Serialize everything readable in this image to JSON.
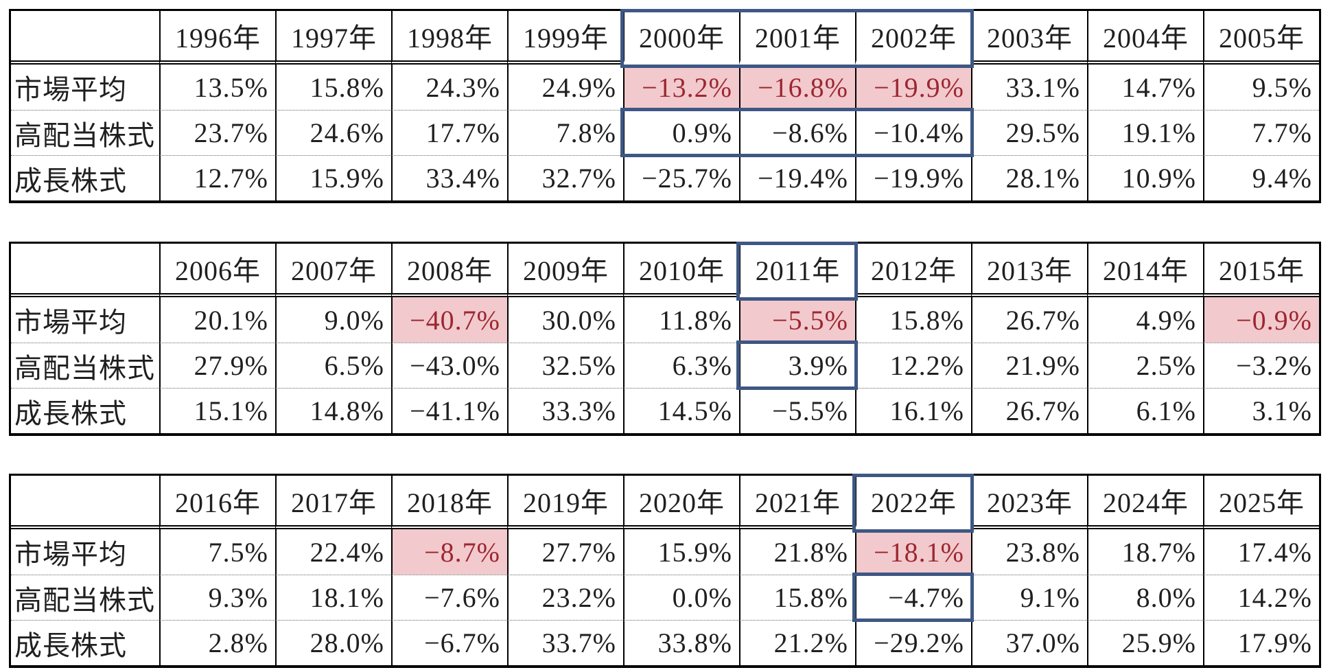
{
  "colors": {
    "pink_fill": "#f2c9cd",
    "red_text": "#9c2731",
    "blue_box_border": "#3e5784",
    "grid_line": "#000000",
    "text": "#1f1f1f"
  },
  "row_labels": [
    "市場平均",
    "高配当株式",
    "成長株式"
  ],
  "tables": [
    {
      "name": "returns-1996-2005",
      "headers": [
        "1996年",
        "1997年",
        "1998年",
        "1999年",
        "2000年",
        "2001年",
        "2002年",
        "2003年",
        "2004年",
        "2005年"
      ],
      "rows": [
        {
          "label": "市場平均",
          "display": [
            "13.5%",
            "15.8%",
            "24.3%",
            "24.9%",
            "−13.2%",
            "−16.8%",
            "−19.9%",
            "33.1%",
            "14.7%",
            "9.5%"
          ]
        },
        {
          "label": "高配当株式",
          "display": [
            "23.7%",
            "24.6%",
            "17.7%",
            "7.8%",
            "0.9%",
            "−8.6%",
            "−10.4%",
            "29.5%",
            "19.1%",
            "7.7%"
          ]
        },
        {
          "label": "成長株式",
          "display": [
            "12.7%",
            "15.9%",
            "33.4%",
            "32.7%",
            "−25.7%",
            "−19.4%",
            "−19.9%",
            "28.1%",
            "10.9%",
            "9.4%"
          ]
        }
      ],
      "highlights": {
        "pink_cells": {
          "row": 0,
          "cols": [
            4,
            5,
            6
          ]
        },
        "blue_box_cols": {
          "start": 4,
          "end": 6
        }
      }
    },
    {
      "name": "returns-2006-2015",
      "headers": [
        "2006年",
        "2007年",
        "2008年",
        "2009年",
        "2010年",
        "2011年",
        "2012年",
        "2013年",
        "2014年",
        "2015年"
      ],
      "rows": [
        {
          "label": "市場平均",
          "display": [
            "20.1%",
            "9.0%",
            "−40.7%",
            "30.0%",
            "11.8%",
            "−5.5%",
            "15.8%",
            "26.7%",
            "4.9%",
            "−0.9%"
          ]
        },
        {
          "label": "高配当株式",
          "display": [
            "27.9%",
            "6.5%",
            "−43.0%",
            "32.5%",
            "6.3%",
            "3.9%",
            "12.2%",
            "21.9%",
            "2.5%",
            "−3.2%"
          ]
        },
        {
          "label": "成長株式",
          "display": [
            "15.1%",
            "14.8%",
            "−41.1%",
            "33.3%",
            "14.5%",
            "−5.5%",
            "16.1%",
            "26.7%",
            "6.1%",
            "3.1%"
          ]
        }
      ],
      "highlights": {
        "pink_cells": {
          "row": 0,
          "cols": [
            2,
            5,
            9
          ]
        },
        "blue_box_cols": {
          "start": 5,
          "end": 5
        }
      }
    },
    {
      "name": "returns-2016-2025",
      "headers": [
        "2016年",
        "2017年",
        "2018年",
        "2019年",
        "2020年",
        "2021年",
        "2022年",
        "2023年",
        "2024年",
        "2025年"
      ],
      "rows": [
        {
          "label": "市場平均",
          "display": [
            "7.5%",
            "22.4%",
            "−8.7%",
            "27.7%",
            "15.9%",
            "21.8%",
            "−18.1%",
            "23.8%",
            "18.7%",
            "17.4%"
          ]
        },
        {
          "label": "高配当株式",
          "display": [
            "9.3%",
            "18.1%",
            "−7.6%",
            "23.2%",
            "0.0%",
            "15.8%",
            "−4.7%",
            "9.1%",
            "8.0%",
            "14.2%"
          ]
        },
        {
          "label": "成長株式",
          "display": [
            "2.8%",
            "28.0%",
            "−6.7%",
            "33.7%",
            "33.8%",
            "21.2%",
            "−29.2%",
            "37.0%",
            "25.9%",
            "17.9%"
          ]
        }
      ],
      "highlights": {
        "pink_cells": {
          "row": 0,
          "cols": [
            2,
            6
          ]
        },
        "blue_box_cols": {
          "start": 6,
          "end": 6
        }
      }
    }
  ],
  "chart_data": [
    {
      "type": "table",
      "title": "",
      "categories": [
        "1996年",
        "1997年",
        "1998年",
        "1999年",
        "2000年",
        "2001年",
        "2002年",
        "2003年",
        "2004年",
        "2005年"
      ],
      "unit": "%",
      "series": [
        {
          "name": "市場平均",
          "values": [
            13.5,
            15.8,
            24.3,
            24.9,
            -13.2,
            -16.8,
            -19.9,
            33.1,
            14.7,
            9.5
          ]
        },
        {
          "name": "高配当株式",
          "values": [
            23.7,
            24.6,
            17.7,
            7.8,
            0.9,
            -8.6,
            -10.4,
            29.5,
            19.1,
            7.7
          ]
        },
        {
          "name": "成長株式",
          "values": [
            12.7,
            15.9,
            33.4,
            32.7,
            -25.7,
            -19.4,
            -19.9,
            28.1,
            10.9,
            9.4
          ]
        }
      ]
    },
    {
      "type": "table",
      "title": "",
      "categories": [
        "2006年",
        "2007年",
        "2008年",
        "2009年",
        "2010年",
        "2011年",
        "2012年",
        "2013年",
        "2014年",
        "2015年"
      ],
      "unit": "%",
      "series": [
        {
          "name": "市場平均",
          "values": [
            20.1,
            9.0,
            -40.7,
            30.0,
            11.8,
            -5.5,
            15.8,
            26.7,
            4.9,
            -0.9
          ]
        },
        {
          "name": "高配当株式",
          "values": [
            27.9,
            6.5,
            -43.0,
            32.5,
            6.3,
            3.9,
            12.2,
            21.9,
            2.5,
            -3.2
          ]
        },
        {
          "name": "成長株式",
          "values": [
            15.1,
            14.8,
            -41.1,
            33.3,
            14.5,
            -5.5,
            16.1,
            26.7,
            6.1,
            3.1
          ]
        }
      ]
    },
    {
      "type": "table",
      "title": "",
      "categories": [
        "2016年",
        "2017年",
        "2018年",
        "2019年",
        "2020年",
        "2021年",
        "2022年",
        "2023年",
        "2024年",
        "2025年"
      ],
      "unit": "%",
      "series": [
        {
          "name": "市場平均",
          "values": [
            7.5,
            22.4,
            -8.7,
            27.7,
            15.9,
            21.8,
            -18.1,
            23.8,
            18.7,
            17.4
          ]
        },
        {
          "name": "高配当株式",
          "values": [
            9.3,
            18.1,
            -7.6,
            23.2,
            0.0,
            15.8,
            -4.7,
            9.1,
            8.0,
            14.2
          ]
        },
        {
          "name": "成長株式",
          "values": [
            2.8,
            28.0,
            -6.7,
            33.7,
            33.8,
            21.2,
            -29.2,
            37.0,
            25.9,
            17.9
          ]
        }
      ]
    }
  ]
}
